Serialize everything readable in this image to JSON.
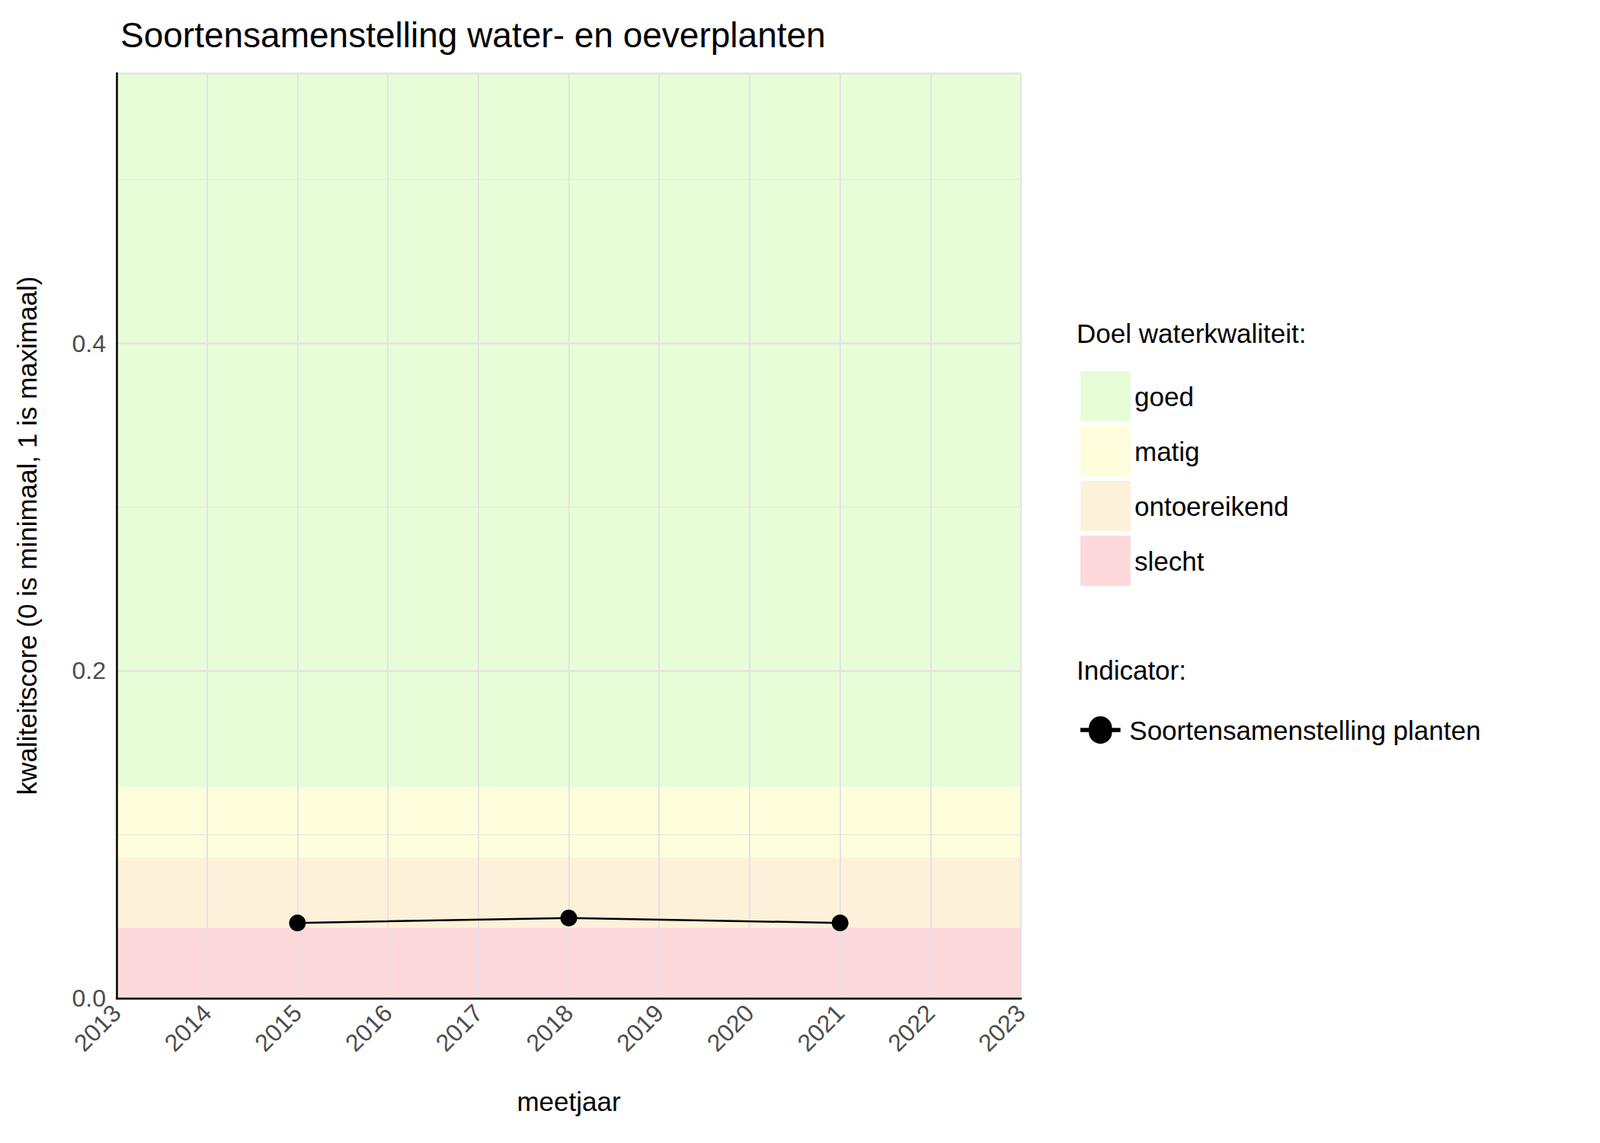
{
  "chart_data": {
    "type": "line",
    "title": "Soortensamenstelling water- en oeverplanten",
    "x_label": "meetjaar",
    "y_label": "kwaliteitscore (0 is minimaal, 1 is maximaal)",
    "xlim": [
      2013,
      2023
    ],
    "xticks": [
      2013,
      2014,
      2015,
      2016,
      2017,
      2018,
      2019,
      2020,
      2021,
      2022,
      2023
    ],
    "ylim": [
      0,
      0.565
    ],
    "yticks": [
      {
        "value": 0,
        "label": "0.0"
      },
      0.2,
      0.4
    ],
    "grid": true,
    "x": [
      2015,
      2018,
      2021
    ],
    "series": [
      {
        "name": "Soortensamenstelling planten",
        "color": "#000000",
        "marker": "circle",
        "line_style": "solid",
        "values": [
          0.046,
          0.049,
          0.046
        ]
      }
    ],
    "band_legend_title": "Doel waterkwaliteit:",
    "series_legend_title": "Indicator:",
    "bands": [
      {
        "name": "goed",
        "from": 0.129,
        "to": 0.565,
        "color": "#e7fdd8"
      },
      {
        "name": "matig",
        "from": 0.086,
        "to": 0.129,
        "color": "#fefedc"
      },
      {
        "name": "ontoereikend",
        "from": 0.043,
        "to": 0.086,
        "color": "#fef1da"
      },
      {
        "name": "slecht",
        "from": 0,
        "to": 0.043,
        "color": "#fed9dc"
      }
    ]
  }
}
